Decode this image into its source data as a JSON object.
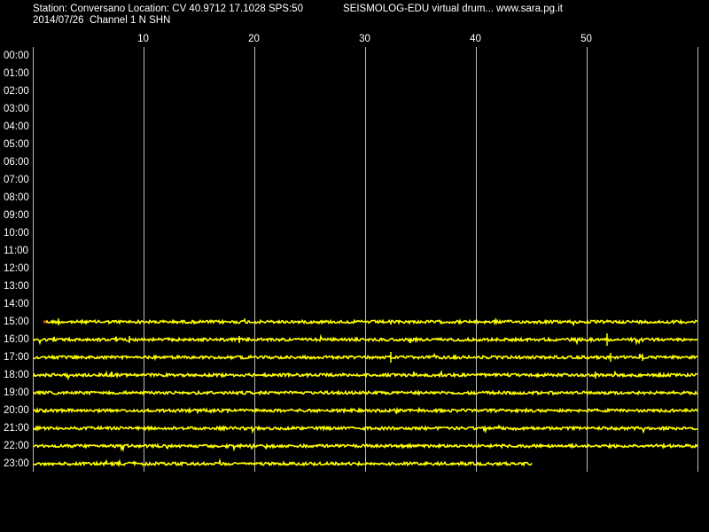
{
  "header": {
    "station": "Station: Conversano Location: CV 40.9712 17.1028 SPS:50",
    "source": "SEISMOLOG-EDU virtual drum... www.sara.pg.it",
    "date_channel": "2014/07/26  Channel 1 N SHN"
  },
  "minute_labels": [
    "10",
    "20",
    "30",
    "40",
    "50"
  ],
  "hour_labels": [
    "00:00",
    "01:00",
    "02:00",
    "03:00",
    "04:00",
    "05:00",
    "06:00",
    "07:00",
    "08:00",
    "09:00",
    "10:00",
    "11:00",
    "12:00",
    "13:00",
    "14:00",
    "15:00",
    "16:00",
    "17:00",
    "18:00",
    "19:00",
    "20:00",
    "21:00",
    "22:00",
    "23:00"
  ]
}
